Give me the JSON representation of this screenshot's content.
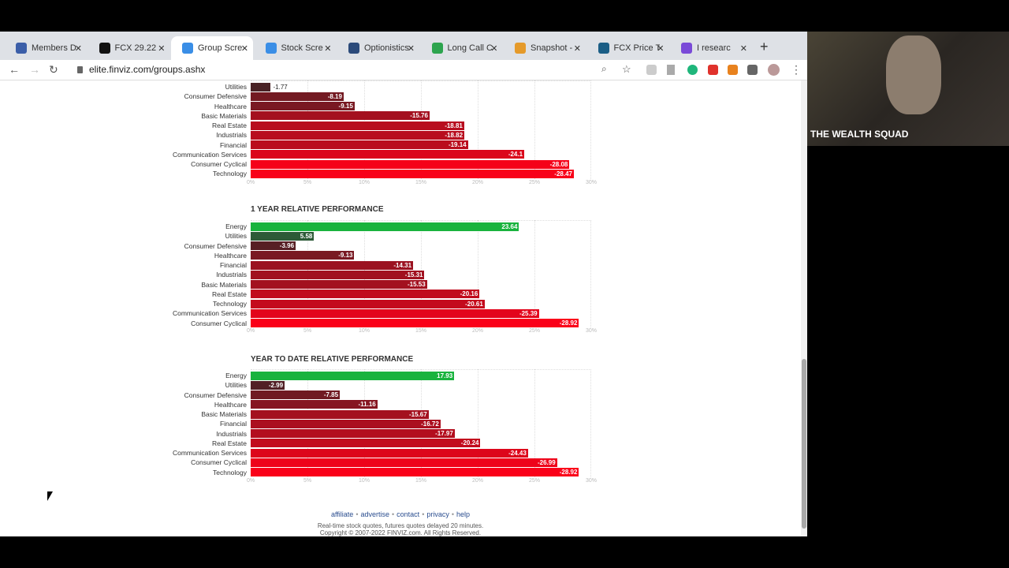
{
  "browser": {
    "tabs": [
      {
        "label": "Members D",
        "color": "#3b5ea8",
        "active": false
      },
      {
        "label": "FCX 29.22",
        "color": "#111111",
        "active": false
      },
      {
        "label": "Group Scre",
        "color": "#3a8ee6",
        "active": true
      },
      {
        "label": "Stock Scre",
        "color": "#3a8ee6",
        "active": false
      },
      {
        "label": "Optionistics",
        "color": "#2b4a7a",
        "active": false
      },
      {
        "label": "Long Call C",
        "color": "#2da44e",
        "active": false
      },
      {
        "label": "Snapshot -",
        "color": "#e59a2a",
        "active": false
      },
      {
        "label": "FCX Price T",
        "color": "#1b5e86",
        "active": false
      },
      {
        "label": "I researc",
        "color": "#7a4ad8",
        "active": false
      }
    ],
    "new_tab": "+",
    "url": "elite.finviz.com/groups.ashx"
  },
  "charts": [
    {
      "title": "",
      "categories": [
        "Utilities",
        "Consumer Defensive",
        "Healthcare",
        "Basic Materials",
        "Real Estate",
        "Industrials",
        "Financial",
        "Communication Services",
        "Consumer Cyclical",
        "Technology"
      ],
      "values": [
        -1.77,
        -8.19,
        -9.15,
        -15.76,
        -18.81,
        -18.82,
        -19.14,
        -24.1,
        -28.08,
        -28.47
      ]
    },
    {
      "title": "1 YEAR RELATIVE PERFORMANCE",
      "categories": [
        "Energy",
        "Utilities",
        "Consumer Defensive",
        "Healthcare",
        "Financial",
        "Industrials",
        "Basic Materials",
        "Real Estate",
        "Technology",
        "Communication Services",
        "Consumer Cyclical"
      ],
      "values": [
        23.64,
        5.58,
        -3.96,
        -9.13,
        -14.31,
        -15.31,
        -15.53,
        -20.16,
        -20.61,
        -25.39,
        -28.92
      ]
    },
    {
      "title": "YEAR TO DATE RELATIVE PERFORMANCE",
      "categories": [
        "Energy",
        "Utilities",
        "Consumer Defensive",
        "Healthcare",
        "Basic Materials",
        "Financial",
        "Industrials",
        "Real Estate",
        "Communication Services",
        "Consumer Cyclical",
        "Technology"
      ],
      "values": [
        17.93,
        -2.99,
        -7.85,
        -11.16,
        -15.67,
        -16.72,
        -17.97,
        -20.24,
        -24.43,
        -26.99,
        -28.92
      ]
    }
  ],
  "chart_data": [
    {
      "type": "bar",
      "orientation": "horizontal",
      "title": "",
      "axis_ticks": [
        "0%",
        "5%",
        "10%",
        "15%",
        "20%",
        "25%",
        "30%"
      ],
      "xlim": [
        0,
        30
      ],
      "grid": true
    },
    {
      "type": "bar",
      "orientation": "horizontal",
      "title": "1 YEAR RELATIVE PERFORMANCE",
      "axis_ticks": [
        "0%",
        "5%",
        "10%",
        "15%",
        "20%",
        "25%",
        "30%"
      ],
      "xlim": [
        0,
        30
      ],
      "grid": true
    },
    {
      "type": "bar",
      "orientation": "horizontal",
      "title": "YEAR TO DATE RELATIVE PERFORMANCE",
      "axis_ticks": [
        "0%",
        "5%",
        "10%",
        "15%",
        "20%",
        "25%",
        "30%"
      ],
      "xlim": [
        0,
        30
      ],
      "grid": true
    }
  ],
  "colors": {
    "positive_strong": "#19b33e",
    "positive_weak": "#2d5a37",
    "negative_weak": "#3d2426",
    "negative_strong": "#fb0019"
  },
  "footer": {
    "links": [
      "affiliate",
      "advertise",
      "contact",
      "privacy",
      "help"
    ],
    "note": "Real-time stock quotes, futures quotes delayed 20 minutes.",
    "copyright": "Copyright © 2007-2022 FINVIZ.com. All Rights Reserved."
  },
  "webcam": {
    "label": "THE WEALTH SQUAD"
  }
}
